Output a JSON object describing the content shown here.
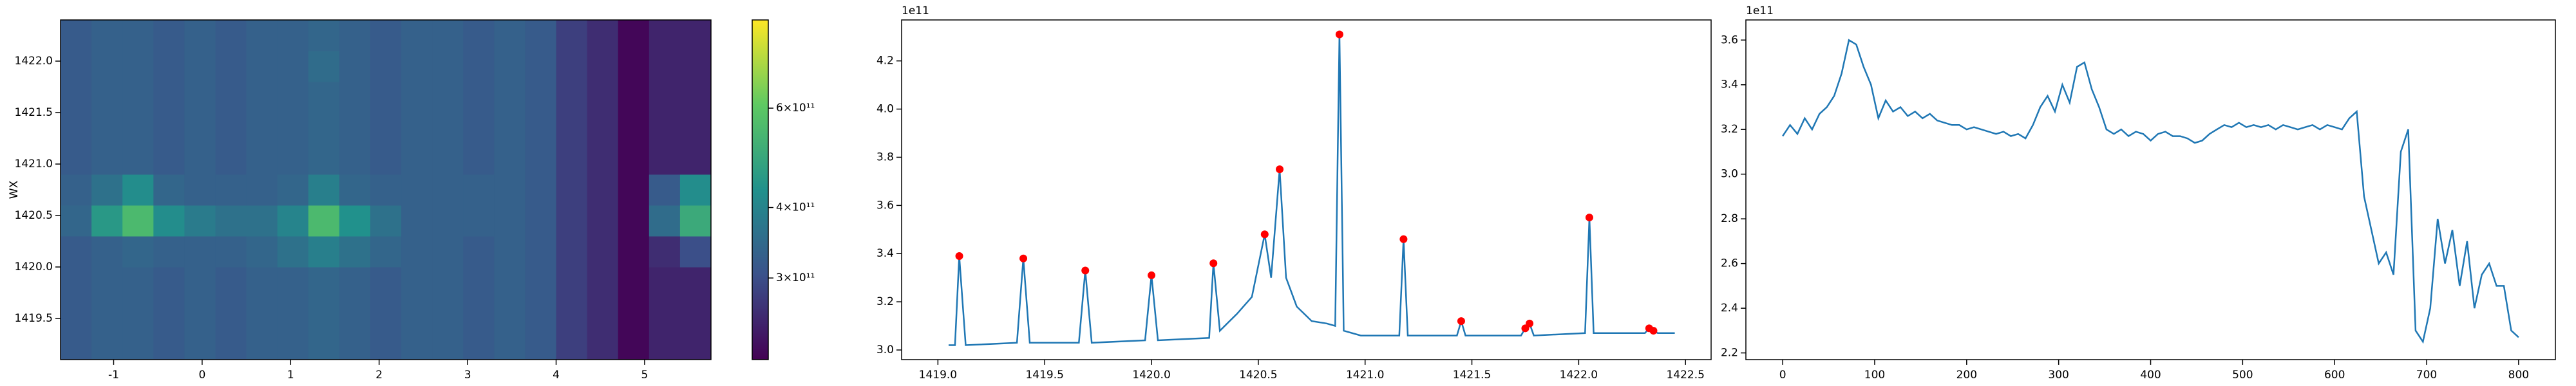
{
  "chart_data": [
    {
      "type": "heatmap",
      "y_label": "WX",
      "colormap": "viridis",
      "zscale": "log",
      "x_edges": [
        -1.6,
        -1.25,
        -0.9,
        -0.55,
        -0.2,
        0.15,
        0.5,
        0.85,
        1.2,
        1.55,
        1.9,
        2.25,
        2.6,
        2.95,
        3.3,
        3.65,
        4.0,
        4.35,
        4.7,
        5.05,
        5.4,
        5.75
      ],
      "y_edges": [
        1419.1,
        1419.4,
        1419.7,
        1420.0,
        1420.3,
        1420.6,
        1420.9,
        1421.2,
        1421.5,
        1421.8,
        1422.1,
        1422.4
      ],
      "values": [
        [
          320000000000.0,
          330000000000.0,
          330000000000.0,
          320000000000.0,
          330000000000.0,
          320000000000.0,
          330000000000.0,
          330000000000.0,
          340000000000.0,
          330000000000.0,
          320000000000.0,
          330000000000.0,
          330000000000.0,
          320000000000.0,
          330000000000.0,
          320000000000.0,
          280000000000.0,
          260000000000.0,
          220000000000.0,
          250000000000.0,
          250000000000.0
        ],
        [
          320000000000.0,
          330000000000.0,
          330000000000.0,
          320000000000.0,
          330000000000.0,
          320000000000.0,
          330000000000.0,
          330000000000.0,
          340000000000.0,
          330000000000.0,
          320000000000.0,
          330000000000.0,
          330000000000.0,
          320000000000.0,
          330000000000.0,
          320000000000.0,
          280000000000.0,
          260000000000.0,
          220000000000.0,
          250000000000.0,
          250000000000.0
        ],
        [
          320000000000.0,
          330000000000.0,
          330000000000.0,
          320000000000.0,
          330000000000.0,
          320000000000.0,
          330000000000.0,
          330000000000.0,
          340000000000.0,
          330000000000.0,
          320000000000.0,
          330000000000.0,
          330000000000.0,
          320000000000.0,
          330000000000.0,
          320000000000.0,
          280000000000.0,
          260000000000.0,
          220000000000.0,
          250000000000.0,
          250000000000.0
        ],
        [
          320000000000.0,
          330000000000.0,
          340000000000.0,
          330000000000.0,
          330000000000.0,
          330000000000.0,
          340000000000.0,
          360000000000.0,
          390000000000.0,
          360000000000.0,
          340000000000.0,
          330000000000.0,
          330000000000.0,
          320000000000.0,
          330000000000.0,
          320000000000.0,
          280000000000.0,
          260000000000.0,
          220000000000.0,
          260000000000.0,
          300000000000.0
        ],
        [
          340000000000.0,
          450000000000.0,
          550000000000.0,
          420000000000.0,
          380000000000.0,
          360000000000.0,
          360000000000.0,
          400000000000.0,
          550000000000.0,
          430000000000.0,
          360000000000.0,
          330000000000.0,
          330000000000.0,
          330000000000.0,
          330000000000.0,
          320000000000.0,
          280000000000.0,
          260000000000.0,
          220000000000.0,
          350000000000.0,
          500000000000.0
        ],
        [
          330000000000.0,
          360000000000.0,
          420000000000.0,
          340000000000.0,
          330000000000.0,
          330000000000.0,
          330000000000.0,
          340000000000.0,
          390000000000.0,
          340000000000.0,
          330000000000.0,
          330000000000.0,
          330000000000.0,
          330000000000.0,
          330000000000.0,
          320000000000.0,
          280000000000.0,
          260000000000.0,
          220000000000.0,
          320000000000.0,
          420000000000.0
        ],
        [
          320000000000.0,
          330000000000.0,
          330000000000.0,
          320000000000.0,
          330000000000.0,
          320000000000.0,
          330000000000.0,
          330000000000.0,
          340000000000.0,
          330000000000.0,
          320000000000.0,
          330000000000.0,
          330000000000.0,
          320000000000.0,
          330000000000.0,
          320000000000.0,
          280000000000.0,
          260000000000.0,
          220000000000.0,
          250000000000.0,
          250000000000.0
        ],
        [
          320000000000.0,
          330000000000.0,
          330000000000.0,
          320000000000.0,
          330000000000.0,
          320000000000.0,
          330000000000.0,
          330000000000.0,
          340000000000.0,
          330000000000.0,
          320000000000.0,
          330000000000.0,
          330000000000.0,
          320000000000.0,
          330000000000.0,
          320000000000.0,
          280000000000.0,
          260000000000.0,
          220000000000.0,
          250000000000.0,
          250000000000.0
        ],
        [
          320000000000.0,
          330000000000.0,
          330000000000.0,
          320000000000.0,
          330000000000.0,
          320000000000.0,
          330000000000.0,
          330000000000.0,
          340000000000.0,
          330000000000.0,
          320000000000.0,
          330000000000.0,
          330000000000.0,
          320000000000.0,
          330000000000.0,
          320000000000.0,
          280000000000.0,
          260000000000.0,
          220000000000.0,
          250000000000.0,
          250000000000.0
        ],
        [
          320000000000.0,
          330000000000.0,
          330000000000.0,
          320000000000.0,
          330000000000.0,
          320000000000.0,
          330000000000.0,
          330000000000.0,
          350000000000.0,
          330000000000.0,
          320000000000.0,
          330000000000.0,
          330000000000.0,
          320000000000.0,
          330000000000.0,
          320000000000.0,
          280000000000.0,
          260000000000.0,
          220000000000.0,
          250000000000.0,
          250000000000.0
        ],
        [
          320000000000.0,
          330000000000.0,
          330000000000.0,
          320000000000.0,
          330000000000.0,
          320000000000.0,
          330000000000.0,
          330000000000.0,
          340000000000.0,
          330000000000.0,
          320000000000.0,
          330000000000.0,
          330000000000.0,
          320000000000.0,
          330000000000.0,
          320000000000.0,
          280000000000.0,
          260000000000.0,
          220000000000.0,
          250000000000.0,
          250000000000.0
        ]
      ],
      "xlim": [
        -1.6,
        5.75
      ],
      "xticks": [
        -1,
        0,
        1,
        2,
        3,
        4,
        5
      ],
      "ylim": [
        1419.1,
        1422.4
      ],
      "yticks": [
        {
          "value": 1419.5,
          "label": "1419.5"
        },
        {
          "value": 1420,
          "label": "1420.0"
        },
        {
          "value": 1420.5,
          "label": "1420.5"
        },
        {
          "value": 1421,
          "label": "1421.0"
        },
        {
          "value": 1421.5,
          "label": "1421.5"
        },
        {
          "value": 1422,
          "label": "1422.0"
        }
      ],
      "zlim": [
        215000000000.0,
        860000000000.0
      ],
      "zticks": [
        {
          "value": 300000000000.0,
          "label": "3×10¹¹"
        },
        {
          "value": 400000000000.0,
          "label": "4×10¹¹"
        },
        {
          "value": 600000000000.0,
          "label": "6×10¹¹"
        }
      ]
    },
    {
      "type": "line",
      "offset_label": "1e11",
      "series": [
        {
          "color": "#1f77b4",
          "style": "line",
          "x": [
            1419.05,
            1419.08,
            1419.1,
            1419.13,
            1419.37,
            1419.4,
            1419.43,
            1419.66,
            1419.69,
            1419.72,
            1419.97,
            1420.0,
            1420.03,
            1420.27,
            1420.29,
            1420.32,
            1420.4,
            1420.47,
            1420.53,
            1420.56,
            1420.6,
            1420.63,
            1420.68,
            1420.75,
            1420.82,
            1420.86,
            1420.88,
            1420.9,
            1420.98,
            1421.16,
            1421.18,
            1421.2,
            1421.43,
            1421.45,
            1421.47,
            1421.73,
            1421.75,
            1421.77,
            1421.79,
            1422.03,
            1422.05,
            1422.07,
            1422.31,
            1422.33,
            1422.35,
            1422.37,
            1422.45
          ],
          "values": [
            3.02,
            3.02,
            3.39,
            3.02,
            3.03,
            3.38,
            3.03,
            3.03,
            3.33,
            3.03,
            3.04,
            3.31,
            3.04,
            3.05,
            3.36,
            3.08,
            3.15,
            3.22,
            3.48,
            3.3,
            3.75,
            3.3,
            3.18,
            3.12,
            3.11,
            3.1,
            4.31,
            3.08,
            3.06,
            3.06,
            3.46,
            3.06,
            3.06,
            3.12,
            3.06,
            3.06,
            3.09,
            3.11,
            3.06,
            3.07,
            3.55,
            3.07,
            3.07,
            3.09,
            3.08,
            3.07,
            3.07
          ]
        },
        {
          "color": "#ff0000",
          "style": "markers",
          "x": [
            1419.1,
            1419.4,
            1419.69,
            1420.0,
            1420.29,
            1420.53,
            1420.6,
            1420.88,
            1421.18,
            1421.45,
            1421.75,
            1421.77,
            1422.05,
            1422.33,
            1422.35
          ],
          "values": [
            3.39,
            3.38,
            3.33,
            3.31,
            3.36,
            3.48,
            3.75,
            4.31,
            3.46,
            3.12,
            3.09,
            3.11,
            3.55,
            3.09,
            3.08
          ]
        }
      ],
      "xlim": [
        1418.83,
        1422.62
      ],
      "xticks": [
        {
          "value": 1419,
          "label": "1419.0"
        },
        {
          "value": 1419.5,
          "label": "1419.5"
        },
        {
          "value": 1420,
          "label": "1420.0"
        },
        {
          "value": 1420.5,
          "label": "1420.5"
        },
        {
          "value": 1421,
          "label": "1421.0"
        },
        {
          "value": 1421.5,
          "label": "1421.5"
        },
        {
          "value": 1422,
          "label": "1422.0"
        },
        {
          "value": 1422.5,
          "label": "1422.5"
        }
      ],
      "ylim": [
        2.96,
        4.37
      ],
      "yticks": [
        {
          "value": 3,
          "label": "3.0"
        },
        3.2,
        3.4,
        3.6,
        3.8,
        {
          "value": 4,
          "label": "4.0"
        },
        4.2
      ]
    },
    {
      "type": "line",
      "offset_label": "1e11",
      "series": [
        {
          "color": "#1f77b4",
          "style": "line",
          "x": [
            0,
            8,
            16,
            24,
            32,
            40,
            48,
            56,
            64,
            72,
            80,
            88,
            96,
            104,
            112,
            120,
            128,
            136,
            144,
            152,
            160,
            168,
            176,
            184,
            192,
            200,
            208,
            216,
            224,
            232,
            240,
            248,
            256,
            264,
            272,
            280,
            288,
            296,
            304,
            312,
            320,
            328,
            336,
            344,
            352,
            360,
            368,
            376,
            384,
            392,
            400,
            408,
            416,
            424,
            432,
            440,
            448,
            456,
            464,
            472,
            480,
            488,
            496,
            504,
            512,
            520,
            528,
            536,
            544,
            552,
            560,
            568,
            576,
            584,
            592,
            600,
            608,
            616,
            624,
            632,
            640,
            648,
            656,
            664,
            672,
            680,
            688,
            696,
            704,
            712,
            720,
            728,
            736,
            744,
            752,
            760,
            768,
            776,
            784,
            792,
            800
          ],
          "values": [
            3.17,
            3.22,
            3.18,
            3.25,
            3.2,
            3.27,
            3.3,
            3.35,
            3.45,
            3.6,
            3.58,
            3.48,
            3.4,
            3.25,
            3.33,
            3.28,
            3.3,
            3.26,
            3.28,
            3.25,
            3.27,
            3.24,
            3.23,
            3.22,
            3.22,
            3.2,
            3.21,
            3.2,
            3.19,
            3.18,
            3.19,
            3.17,
            3.18,
            3.16,
            3.22,
            3.3,
            3.35,
            3.28,
            3.4,
            3.32,
            3.48,
            3.5,
            3.38,
            3.3,
            3.2,
            3.18,
            3.2,
            3.17,
            3.19,
            3.18,
            3.15,
            3.18,
            3.19,
            3.17,
            3.17,
            3.16,
            3.14,
            3.15,
            3.18,
            3.2,
            3.22,
            3.21,
            3.23,
            3.21,
            3.22,
            3.21,
            3.22,
            3.2,
            3.22,
            3.21,
            3.2,
            3.21,
            3.22,
            3.2,
            3.22,
            3.21,
            3.2,
            3.25,
            3.28,
            2.9,
            2.75,
            2.6,
            2.65,
            2.55,
            3.1,
            3.2,
            2.3,
            2.25,
            2.4,
            2.8,
            2.6,
            2.75,
            2.5,
            2.7,
            2.4,
            2.55,
            2.6,
            2.5,
            2.5,
            2.3,
            2.27
          ]
        }
      ],
      "xlim": [
        -40,
        840
      ],
      "xticks": [
        0,
        100,
        200,
        300,
        400,
        500,
        600,
        700,
        800
      ],
      "ylim": [
        2.17,
        3.69
      ],
      "yticks": [
        2.2,
        2.4,
        2.6,
        2.8,
        {
          "value": 3,
          "label": "3.0"
        },
        3.2,
        3.4,
        3.6
      ]
    }
  ]
}
